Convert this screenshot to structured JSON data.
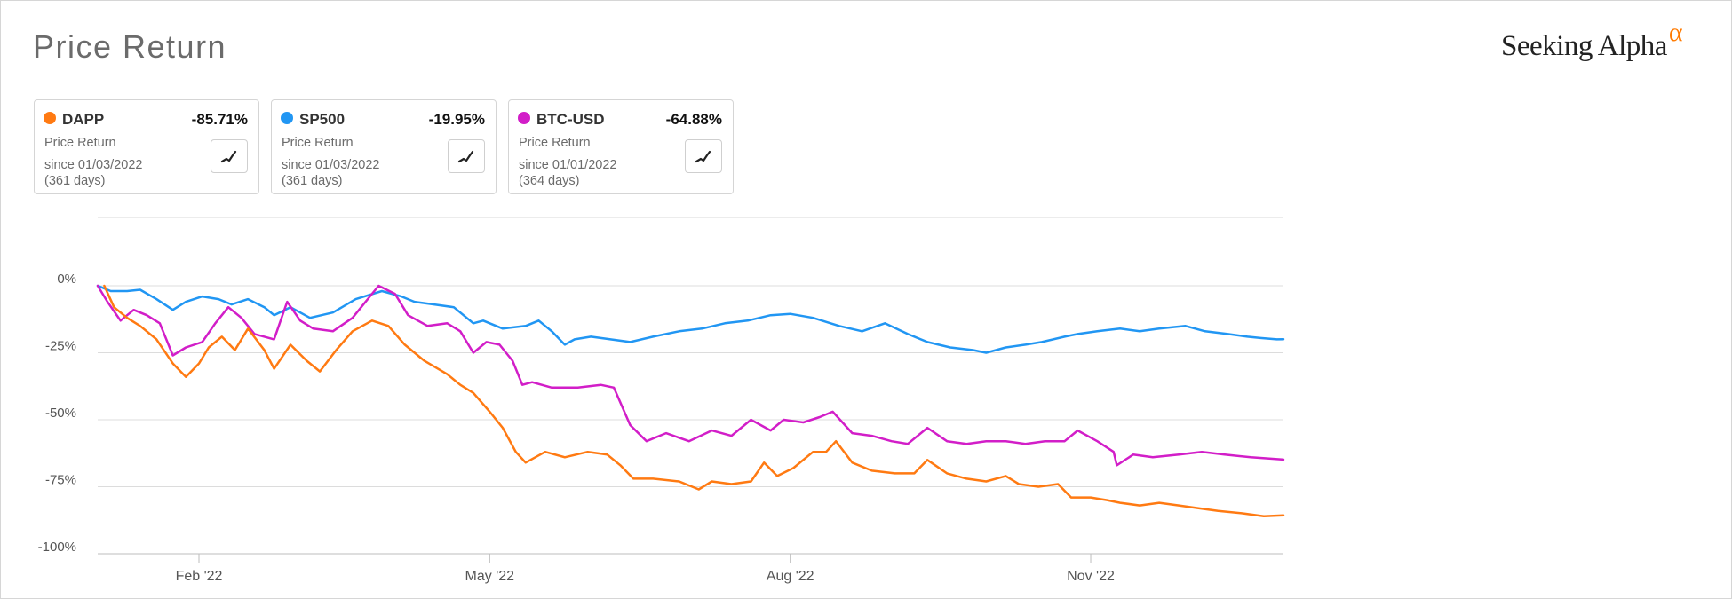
{
  "header": {
    "title": "Price Return",
    "logo_text": "Seeking Alpha",
    "logo_mark": "α"
  },
  "cards": [
    {
      "ticker": "DAPP",
      "return": "-85.71%",
      "label": "Price Return",
      "since": "since 01/03/2022",
      "days": "(361 days)",
      "color": "#ff7a12",
      "icon": "line-chart-icon"
    },
    {
      "ticker": "SP500",
      "return": "-19.95%",
      "label": "Price Return",
      "since": "since 01/03/2022",
      "days": "(361 days)",
      "color": "#2196f3",
      "icon": "line-chart-icon"
    },
    {
      "ticker": "BTC-USD",
      "return": "-64.88%",
      "label": "Price Return",
      "since": "since 01/01/2022",
      "days": "(364 days)",
      "color": "#d21ec8",
      "icon": "line-chart-icon"
    }
  ],
  "chart_data": {
    "type": "line",
    "title": "Price Return",
    "x_range": [
      "2022-01-01",
      "2022-12-30"
    ],
    "x_ticks": [
      {
        "label": "Feb '22",
        "date": "2022-02-01"
      },
      {
        "label": "May '22",
        "date": "2022-05-01"
      },
      {
        "label": "Aug '22",
        "date": "2022-08-01"
      },
      {
        "label": "Nov '22",
        "date": "2022-11-01"
      }
    ],
    "y_ticks": [
      {
        "label": "0%",
        "value": 0
      },
      {
        "label": "-25%",
        "value": -25
      },
      {
        "label": "-50%",
        "value": -50
      },
      {
        "label": "-75%",
        "value": -75
      },
      {
        "label": "-100%",
        "value": -100
      }
    ],
    "ylim": [
      -100,
      25
    ],
    "grid": "horizontal",
    "series": [
      {
        "name": "SP500",
        "color": "#2196f3",
        "points": [
          [
            "2022-01-01",
            0
          ],
          [
            "2022-01-05",
            -2
          ],
          [
            "2022-01-10",
            -2
          ],
          [
            "2022-01-14",
            -1.5
          ],
          [
            "2022-01-19",
            -5
          ],
          [
            "2022-01-24",
            -9
          ],
          [
            "2022-01-28",
            -6
          ],
          [
            "2022-02-02",
            -4
          ],
          [
            "2022-02-07",
            -5
          ],
          [
            "2022-02-11",
            -7
          ],
          [
            "2022-02-16",
            -5
          ],
          [
            "2022-02-21",
            -8
          ],
          [
            "2022-02-24",
            -11
          ],
          [
            "2022-03-01",
            -8
          ],
          [
            "2022-03-07",
            -12
          ],
          [
            "2022-03-14",
            -10
          ],
          [
            "2022-03-21",
            -5
          ],
          [
            "2022-03-29",
            -2
          ],
          [
            "2022-04-04",
            -4
          ],
          [
            "2022-04-08",
            -6
          ],
          [
            "2022-04-14",
            -7
          ],
          [
            "2022-04-20",
            -8
          ],
          [
            "2022-04-26",
            -14
          ],
          [
            "2022-04-29",
            -13
          ],
          [
            "2022-05-05",
            -16
          ],
          [
            "2022-05-12",
            -15
          ],
          [
            "2022-05-16",
            -13
          ],
          [
            "2022-05-20",
            -17
          ],
          [
            "2022-05-24",
            -22
          ],
          [
            "2022-05-27",
            -20
          ],
          [
            "2022-06-01",
            -19
          ],
          [
            "2022-06-07",
            -20
          ],
          [
            "2022-06-13",
            -21
          ],
          [
            "2022-06-20",
            -19
          ],
          [
            "2022-06-28",
            -17
          ],
          [
            "2022-07-05",
            -16
          ],
          [
            "2022-07-12",
            -14
          ],
          [
            "2022-07-19",
            -13
          ],
          [
            "2022-07-26",
            -11
          ],
          [
            "2022-08-01",
            -10.5
          ],
          [
            "2022-08-08",
            -12
          ],
          [
            "2022-08-16",
            -15
          ],
          [
            "2022-08-23",
            -17
          ],
          [
            "2022-08-30",
            -14
          ],
          [
            "2022-09-06",
            -18
          ],
          [
            "2022-09-12",
            -21
          ],
          [
            "2022-09-19",
            -23
          ],
          [
            "2022-09-26",
            -24
          ],
          [
            "2022-09-30",
            -25
          ],
          [
            "2022-10-06",
            -23
          ],
          [
            "2022-10-12",
            -22
          ],
          [
            "2022-10-17",
            -21
          ],
          [
            "2022-10-24",
            -19
          ],
          [
            "2022-10-28",
            -18
          ],
          [
            "2022-11-03",
            -17
          ],
          [
            "2022-11-10",
            -16
          ],
          [
            "2022-11-16",
            -17
          ],
          [
            "2022-11-22",
            -16
          ],
          [
            "2022-11-30",
            -15
          ],
          [
            "2022-12-06",
            -17
          ],
          [
            "2022-12-13",
            -18
          ],
          [
            "2022-12-19",
            -19
          ],
          [
            "2022-12-23",
            -19.5
          ],
          [
            "2022-12-28",
            -20
          ],
          [
            "2022-12-30",
            -19.95
          ]
        ]
      },
      {
        "name": "BTC-USD",
        "color": "#d21ec8",
        "points": [
          [
            "2022-01-01",
            0
          ],
          [
            "2022-01-04",
            -6
          ],
          [
            "2022-01-08",
            -13
          ],
          [
            "2022-01-12",
            -9
          ],
          [
            "2022-01-16",
            -11
          ],
          [
            "2022-01-20",
            -14
          ],
          [
            "2022-01-24",
            -26
          ],
          [
            "2022-01-28",
            -23
          ],
          [
            "2022-02-02",
            -21
          ],
          [
            "2022-02-06",
            -14
          ],
          [
            "2022-02-10",
            -8
          ],
          [
            "2022-02-14",
            -12
          ],
          [
            "2022-02-18",
            -18
          ],
          [
            "2022-02-24",
            -20
          ],
          [
            "2022-02-28",
            -6
          ],
          [
            "2022-03-04",
            -13
          ],
          [
            "2022-03-08",
            -16
          ],
          [
            "2022-03-14",
            -17
          ],
          [
            "2022-03-20",
            -12
          ],
          [
            "2022-03-28",
            0
          ],
          [
            "2022-04-02",
            -3
          ],
          [
            "2022-04-06",
            -11
          ],
          [
            "2022-04-12",
            -15
          ],
          [
            "2022-04-18",
            -14
          ],
          [
            "2022-04-22",
            -17
          ],
          [
            "2022-04-26",
            -25
          ],
          [
            "2022-04-30",
            -21
          ],
          [
            "2022-05-04",
            -22
          ],
          [
            "2022-05-08",
            -28
          ],
          [
            "2022-05-11",
            -37
          ],
          [
            "2022-05-14",
            -36
          ],
          [
            "2022-05-20",
            -38
          ],
          [
            "2022-05-28",
            -38
          ],
          [
            "2022-06-04",
            -37
          ],
          [
            "2022-06-08",
            -38
          ],
          [
            "2022-06-13",
            -52
          ],
          [
            "2022-06-18",
            -58
          ],
          [
            "2022-06-24",
            -55
          ],
          [
            "2022-07-01",
            -58
          ],
          [
            "2022-07-08",
            -54
          ],
          [
            "2022-07-14",
            -56
          ],
          [
            "2022-07-20",
            -50
          ],
          [
            "2022-07-26",
            -54
          ],
          [
            "2022-07-30",
            -50
          ],
          [
            "2022-08-05",
            -51
          ],
          [
            "2022-08-10",
            -49
          ],
          [
            "2022-08-14",
            -47
          ],
          [
            "2022-08-20",
            -55
          ],
          [
            "2022-08-26",
            -56
          ],
          [
            "2022-09-01",
            -58
          ],
          [
            "2022-09-06",
            -59
          ],
          [
            "2022-09-12",
            -53
          ],
          [
            "2022-09-18",
            -58
          ],
          [
            "2022-09-24",
            -59
          ],
          [
            "2022-09-30",
            -58
          ],
          [
            "2022-10-06",
            -58
          ],
          [
            "2022-10-12",
            -59
          ],
          [
            "2022-10-18",
            -58
          ],
          [
            "2022-10-24",
            -58
          ],
          [
            "2022-10-28",
            -54
          ],
          [
            "2022-11-03",
            -58
          ],
          [
            "2022-11-08",
            -62
          ],
          [
            "2022-11-09",
            -67
          ],
          [
            "2022-11-14",
            -63
          ],
          [
            "2022-11-20",
            -64
          ],
          [
            "2022-11-28",
            -63
          ],
          [
            "2022-12-05",
            -62
          ],
          [
            "2022-12-12",
            -63
          ],
          [
            "2022-12-20",
            -64
          ],
          [
            "2022-12-30",
            -64.88
          ]
        ]
      },
      {
        "name": "DAPP",
        "color": "#ff7a12",
        "points": [
          [
            "2022-01-03",
            0
          ],
          [
            "2022-01-06",
            -8
          ],
          [
            "2022-01-10",
            -12
          ],
          [
            "2022-01-14",
            -15
          ],
          [
            "2022-01-19",
            -20
          ],
          [
            "2022-01-24",
            -29
          ],
          [
            "2022-01-28",
            -34
          ],
          [
            "2022-02-01",
            -29
          ],
          [
            "2022-02-04",
            -23
          ],
          [
            "2022-02-08",
            -19
          ],
          [
            "2022-02-12",
            -24
          ],
          [
            "2022-02-16",
            -16
          ],
          [
            "2022-02-21",
            -24
          ],
          [
            "2022-02-24",
            -31
          ],
          [
            "2022-03-01",
            -22
          ],
          [
            "2022-03-06",
            -28
          ],
          [
            "2022-03-10",
            -32
          ],
          [
            "2022-03-15",
            -24
          ],
          [
            "2022-03-20",
            -17
          ],
          [
            "2022-03-26",
            -13
          ],
          [
            "2022-03-31",
            -15
          ],
          [
            "2022-04-05",
            -22
          ],
          [
            "2022-04-11",
            -28
          ],
          [
            "2022-04-18",
            -33
          ],
          [
            "2022-04-22",
            -37
          ],
          [
            "2022-04-26",
            -40
          ],
          [
            "2022-05-01",
            -47
          ],
          [
            "2022-05-05",
            -53
          ],
          [
            "2022-05-09",
            -62
          ],
          [
            "2022-05-12",
            -66
          ],
          [
            "2022-05-18",
            -62
          ],
          [
            "2022-05-24",
            -64
          ],
          [
            "2022-05-31",
            -62
          ],
          [
            "2022-06-06",
            -63
          ],
          [
            "2022-06-10",
            -67
          ],
          [
            "2022-06-14",
            -72
          ],
          [
            "2022-06-20",
            -72
          ],
          [
            "2022-06-28",
            -73
          ],
          [
            "2022-07-04",
            -76
          ],
          [
            "2022-07-08",
            -73
          ],
          [
            "2022-07-14",
            -74
          ],
          [
            "2022-07-20",
            -73
          ],
          [
            "2022-07-24",
            -66
          ],
          [
            "2022-07-28",
            -71
          ],
          [
            "2022-08-02",
            -68
          ],
          [
            "2022-08-08",
            -62
          ],
          [
            "2022-08-12",
            -62
          ],
          [
            "2022-08-15",
            -58
          ],
          [
            "2022-08-20",
            -66
          ],
          [
            "2022-08-26",
            -69
          ],
          [
            "2022-09-02",
            -70
          ],
          [
            "2022-09-08",
            -70
          ],
          [
            "2022-09-12",
            -65
          ],
          [
            "2022-09-18",
            -70
          ],
          [
            "2022-09-24",
            -72
          ],
          [
            "2022-09-30",
            -73
          ],
          [
            "2022-10-06",
            -71
          ],
          [
            "2022-10-10",
            -74
          ],
          [
            "2022-10-16",
            -75
          ],
          [
            "2022-10-22",
            -74
          ],
          [
            "2022-10-26",
            -79
          ],
          [
            "2022-11-01",
            -79
          ],
          [
            "2022-11-06",
            -80
          ],
          [
            "2022-11-10",
            -81
          ],
          [
            "2022-11-16",
            -82
          ],
          [
            "2022-11-22",
            -81
          ],
          [
            "2022-11-28",
            -82
          ],
          [
            "2022-12-04",
            -83
          ],
          [
            "2022-12-10",
            -84
          ],
          [
            "2022-12-18",
            -85
          ],
          [
            "2022-12-24",
            -86
          ],
          [
            "2022-12-30",
            -85.71
          ]
        ]
      }
    ]
  }
}
